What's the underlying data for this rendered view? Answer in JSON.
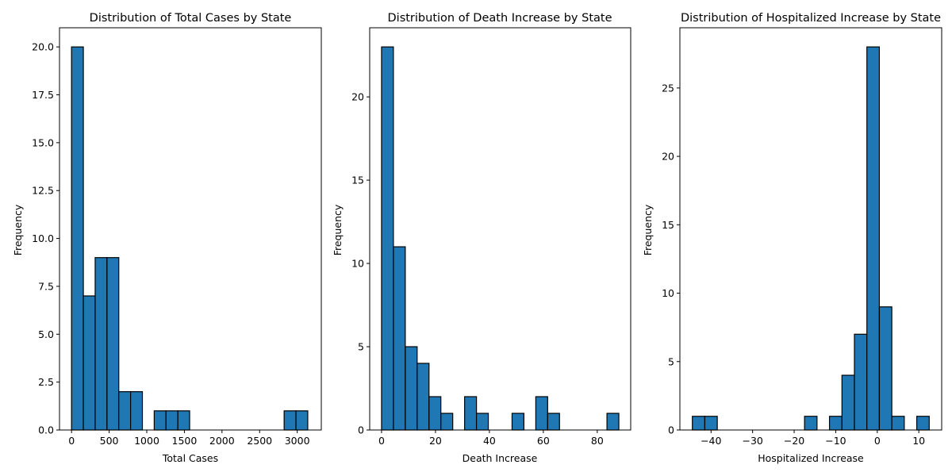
{
  "chart_data": [
    {
      "type": "bar",
      "title": "Distribution of Total Cases by State",
      "xlabel": "Total Cases",
      "ylabel": "Frequency",
      "xlim": [
        -160,
        3320
      ],
      "ylim": [
        0,
        21
      ],
      "xticks": [
        0,
        500,
        1000,
        1500,
        2000,
        2500,
        3000
      ],
      "xtick_labels": [
        "0",
        "500",
        "1000",
        "1500",
        "2000",
        "2500",
        "3000"
      ],
      "yticks": [
        0,
        2.5,
        5,
        7.5,
        10,
        12.5,
        15,
        17.5,
        20
      ],
      "ytick_labels": [
        "0.0",
        "2.5",
        "5.0",
        "7.5",
        "10.0",
        "12.5",
        "15.0",
        "17.5",
        "20.0"
      ],
      "bin_edges": [
        0,
        157,
        314,
        471,
        628,
        785,
        942,
        1099,
        1256,
        1413,
        1570,
        1727,
        1884,
        2041,
        2198,
        2355,
        2512,
        2669,
        2826,
        2983,
        3140
      ],
      "values": [
        20,
        7,
        9,
        9,
        2,
        2,
        0,
        1,
        1,
        1,
        0,
        0,
        0,
        0,
        0,
        0,
        0,
        0,
        1,
        1
      ],
      "grid": false,
      "colors": {
        "bar": "#1f77b4",
        "edge": "#000000"
      }
    },
    {
      "type": "bar",
      "title": "Distribution of Death Increase by State",
      "xlabel": "Death Increase",
      "ylabel": "Frequency",
      "xlim": [
        -4.4,
        92.4
      ],
      "ylim": [
        0,
        24.15
      ],
      "xticks": [
        0,
        20,
        40,
        60,
        80
      ],
      "xtick_labels": [
        "0",
        "20",
        "40",
        "60",
        "80"
      ],
      "yticks": [
        0,
        5,
        10,
        15,
        20
      ],
      "ytick_labels": [
        "0",
        "5",
        "10",
        "15",
        "20"
      ],
      "bin_edges": [
        0,
        4.4,
        8.8,
        13.2,
        17.6,
        22,
        26.4,
        30.8,
        35.2,
        39.6,
        44,
        48.4,
        52.8,
        57.2,
        61.6,
        66,
        70.4,
        74.8,
        79.2,
        83.6,
        88
      ],
      "values": [
        23,
        11,
        5,
        4,
        2,
        1,
        0,
        2,
        1,
        0,
        0,
        1,
        0,
        2,
        1,
        0,
        0,
        0,
        0,
        1
      ],
      "grid": false,
      "colors": {
        "bar": "#1f77b4",
        "edge": "#000000"
      }
    },
    {
      "type": "bar",
      "title": "Distribution of Hospitalized Increase by State",
      "xlabel": "Hospitalized Increase",
      "ylabel": "Frequency",
      "xlim": [
        -47.5,
        15.5
      ],
      "ylim": [
        0,
        29.4
      ],
      "xticks": [
        -40,
        -30,
        -20,
        -10,
        0,
        10
      ],
      "xtick_labels": [
        "−40",
        "−30",
        "−20",
        "−10",
        "0",
        "10"
      ],
      "yticks": [
        0,
        5,
        10,
        15,
        20,
        25
      ],
      "ytick_labels": [
        "0",
        "5",
        "10",
        "15",
        "20",
        "25"
      ],
      "bin_edges": [
        -44.5,
        -41.5,
        -38.5,
        -35.5,
        -32.5,
        -29.5,
        -26.5,
        -23.5,
        -20.5,
        -17.5,
        -14.5,
        -11.5,
        -8.5,
        -5.5,
        -2.5,
        0.5,
        3.5,
        6.5,
        9.5,
        12.5
      ],
      "values": [
        1,
        1,
        0,
        0,
        0,
        0,
        0,
        0,
        0,
        1,
        0,
        1,
        4,
        7,
        28,
        9,
        1,
        0,
        1
      ],
      "grid": false,
      "colors": {
        "bar": "#1f77b4",
        "edge": "#000000"
      }
    }
  ]
}
